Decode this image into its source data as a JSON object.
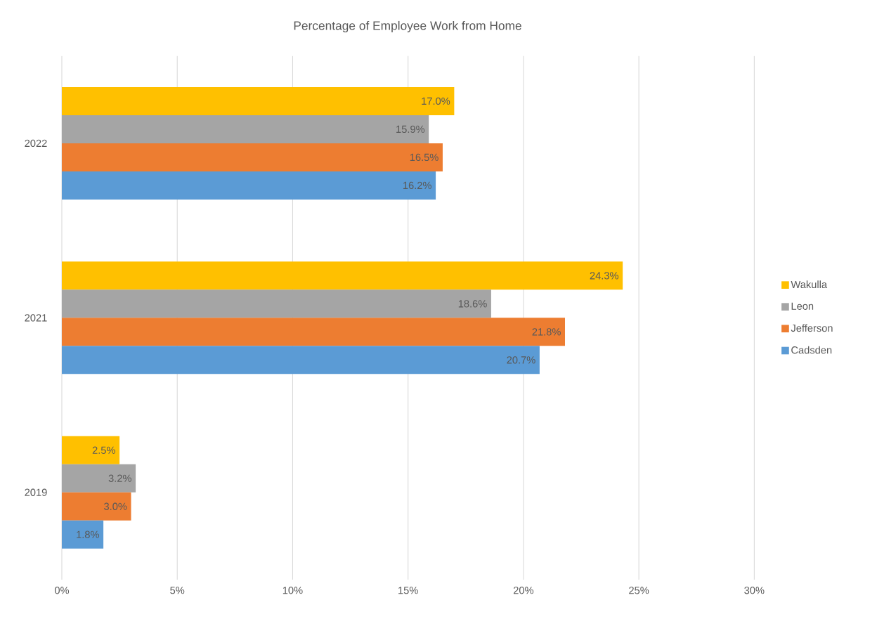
{
  "chart_data": {
    "type": "bar",
    "orientation": "horizontal",
    "title": "Percentage of Employee Work from Home",
    "categories": [
      "2022",
      "2021",
      "2019"
    ],
    "series": [
      {
        "name": "Wakulla",
        "color": "#ffc000",
        "values": [
          17.0,
          24.3,
          2.5
        ],
        "value_labels": [
          "17.0%",
          "24.3%",
          "2.5%"
        ]
      },
      {
        "name": "Leon",
        "color": "#a5a5a5",
        "values": [
          15.9,
          18.6,
          3.2
        ],
        "value_labels": [
          "15.9%",
          "18.6%",
          "3.2%"
        ]
      },
      {
        "name": "Jefferson",
        "color": "#ed7d31",
        "values": [
          16.5,
          21.8,
          3.0
        ],
        "value_labels": [
          "16.5%",
          "21.8%",
          "3.0%"
        ]
      },
      {
        "name": "Cadsden",
        "color": "#5b9bd5",
        "values": [
          16.2,
          20.7,
          1.8
        ],
        "value_labels": [
          "16.2%",
          "20.7%",
          "1.8%"
        ]
      }
    ],
    "xlim": [
      0,
      30
    ],
    "xticks": [
      {
        "value": 0,
        "label": "0%"
      },
      {
        "value": 5,
        "label": "5%"
      },
      {
        "value": 10,
        "label": "10%"
      },
      {
        "value": 15,
        "label": "15%"
      },
      {
        "value": 20,
        "label": "20%"
      },
      {
        "value": 25,
        "label": "25%"
      },
      {
        "value": 30,
        "label": "30%"
      }
    ],
    "grid": "x",
    "legend": "right"
  }
}
